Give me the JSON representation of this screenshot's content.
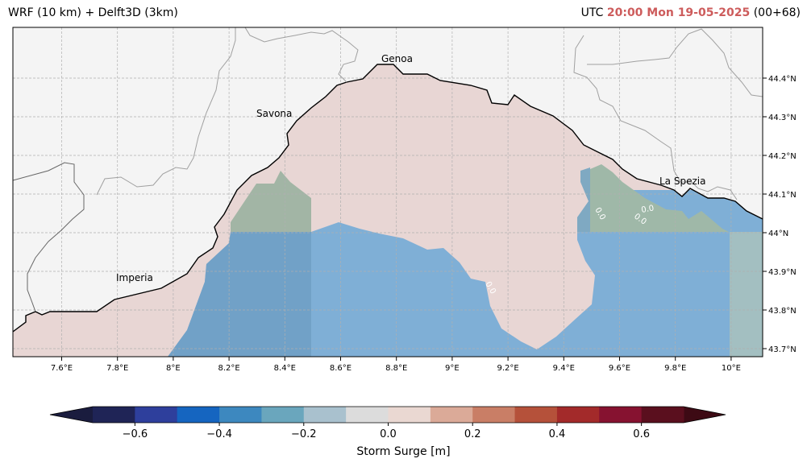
{
  "header": {
    "left_title": "WRF (10 km) + Delft3D (3km)",
    "utc_label": "UTC",
    "datetime": "20:00 Mon 19-05-2025",
    "lead": "(00+68)",
    "highlight_color": "#cd5c5c"
  },
  "map": {
    "lon_ticks": [
      "7.6°E",
      "7.8°E",
      "8°E",
      "8.2°E",
      "8.4°E",
      "8.6°E",
      "8.8°E",
      "9°E",
      "9.2°E",
      "9.4°E",
      "9.6°E",
      "9.8°E",
      "10°E"
    ],
    "lat_ticks": [
      "44.4°N",
      "44.3°N",
      "44.2°N",
      "44.1°N",
      "44°N",
      "43.9°N",
      "43.8°N",
      "43.7°N"
    ],
    "cities": [
      "Genoa",
      "Savona",
      "Imperia",
      "La Spezia"
    ],
    "contour_labels": [
      "0.0",
      "0.0",
      "0.0",
      "0.0"
    ],
    "land_color": "#f4f4f4",
    "sea_near_zero_color": "#e8d6d4",
    "sea_negative_color": "#7fafd6"
  },
  "colorbar": {
    "label": "Storm Surge [m]",
    "tick_labels": [
      "−0.6",
      "−0.4",
      "−0.2",
      "0.0",
      "0.2",
      "0.4",
      "0.6"
    ],
    "colors": [
      "#1f2456",
      "#2e3f9c",
      "#1565c0",
      "#3d88bf",
      "#6aa6bd",
      "#a9c1ce",
      "#dcdcdc",
      "#ead8d2",
      "#dbaa98",
      "#c97e66",
      "#b5513a",
      "#a32a2a",
      "#861230",
      "#5a0f1e"
    ],
    "under_color": "#1a1c3e",
    "over_color": "#3d0a14"
  }
}
